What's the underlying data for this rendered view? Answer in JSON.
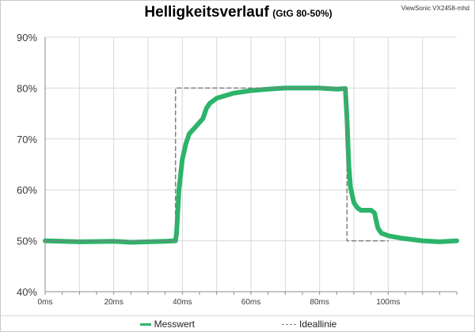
{
  "header": {
    "title": "Helligkeitsverlauf",
    "subtitle": "(GtG 80-50%)",
    "model": "ViewSonic VX2458-mhd"
  },
  "legend": {
    "series1": "Messwert",
    "series2": "Ideallinie"
  },
  "chart_data": {
    "type": "line",
    "xlabel": "",
    "ylabel": "",
    "xlim": [
      0,
      120
    ],
    "ylim": [
      40,
      90
    ],
    "x_ticks": [
      "0ms",
      "20ms",
      "40ms",
      "60ms",
      "80ms",
      "100ms"
    ],
    "x_tick_values": [
      0,
      20,
      40,
      60,
      80,
      100
    ],
    "y_ticks": [
      "40%",
      "50%",
      "60%",
      "70%",
      "80%",
      "90%"
    ],
    "y_tick_values": [
      40,
      50,
      60,
      70,
      80,
      90
    ],
    "grid": {
      "vertical": true,
      "horizontal": true
    },
    "legend_position": "bottom",
    "series": [
      {
        "name": "Messwert",
        "color": "#2cb46a",
        "style": "solid",
        "x": [
          0,
          10,
          20,
          25,
          30,
          35,
          38,
          38.3,
          38.6,
          39,
          40,
          41,
          42,
          44,
          46,
          47,
          48,
          50,
          55,
          60,
          65,
          70,
          75,
          80,
          85,
          87.5,
          88,
          88.5,
          89,
          90,
          91,
          92,
          93,
          95,
          96,
          97,
          98,
          100,
          104,
          110,
          115,
          120
        ],
        "y": [
          50,
          49.8,
          49.9,
          49.7,
          49.8,
          49.9,
          50,
          51.5,
          55,
          60,
          66,
          69,
          71,
          72.5,
          74,
          76,
          77,
          78,
          79,
          79.5,
          79.8,
          80,
          80,
          80,
          79.8,
          79.9,
          74,
          65,
          60.5,
          57.5,
          56.5,
          56,
          56,
          56,
          55.5,
          52.5,
          51.5,
          51,
          50.5,
          50,
          49.8,
          50
        ]
      },
      {
        "name": "Ideallinie",
        "color": "#7f7f7f",
        "style": "dashed",
        "x": [
          0,
          38,
          38,
          88,
          88,
          100
        ],
        "y": [
          50,
          50,
          80,
          80,
          50,
          50
        ]
      }
    ]
  }
}
